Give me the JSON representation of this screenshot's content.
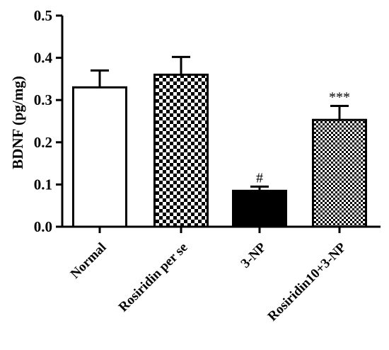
{
  "chart_data": {
    "type": "bar",
    "title": "",
    "xlabel": "",
    "ylabel": "BDNF (pg/mg)",
    "ylim": [
      0,
      0.5
    ],
    "yticks": [
      "0.0",
      "0.1",
      "0.2",
      "0.3",
      "0.4",
      "0.5"
    ],
    "grid": false,
    "categories": [
      "Normal",
      "Rosiridin per se",
      "3-NP",
      "Rosiridin10+3-NP"
    ],
    "values": [
      0.33,
      0.36,
      0.085,
      0.253
    ],
    "errors": [
      0.04,
      0.042,
      0.01,
      0.033
    ],
    "fills": [
      "white",
      "checker",
      "black",
      "fine-checker"
    ],
    "annotations": [
      "",
      "",
      "#",
      "***"
    ]
  }
}
